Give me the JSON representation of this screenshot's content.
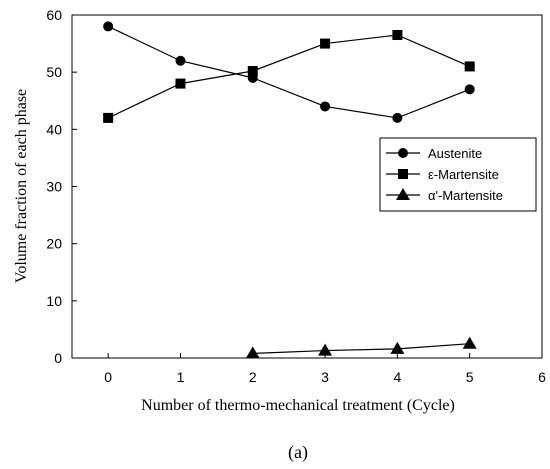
{
  "chart_data": {
    "type": "line",
    "xlabel": "Number of thermo-mechanical treatment (Cycle)",
    "ylabel": "Volume fraction of each phase",
    "xlim": [
      -0.5,
      6
    ],
    "ylim": [
      0,
      60
    ],
    "xticks": [
      0,
      1,
      2,
      3,
      4,
      5,
      6
    ],
    "yticks": [
      0,
      10,
      20,
      30,
      40,
      50,
      60
    ],
    "grid": false,
    "legend_position": "right",
    "series": [
      {
        "name": "Austenite",
        "marker": "circle",
        "x": [
          0,
          1,
          2,
          3,
          4,
          5
        ],
        "y": [
          58,
          52,
          49,
          44,
          42,
          47
        ]
      },
      {
        "name": "ε-Martensite",
        "marker": "square",
        "x": [
          0,
          1,
          2,
          3,
          4,
          5
        ],
        "y": [
          42,
          48,
          50.2,
          55,
          56.5,
          51
        ]
      },
      {
        "name": "α'-Martensite",
        "marker": "triangle",
        "x": [
          2,
          3,
          4,
          5
        ],
        "y": [
          0.8,
          1.3,
          1.6,
          2.5
        ]
      }
    ],
    "caption": "(a)"
  }
}
